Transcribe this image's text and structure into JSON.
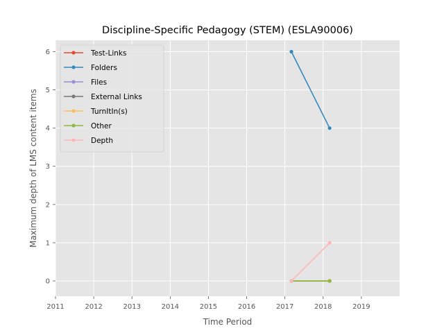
{
  "chart_data": {
    "type": "line",
    "title": "Discipline-Specific Pedagogy (STEM) (ESLA90006)",
    "xlabel": "Time Period",
    "ylabel": "Maximum depth of LMS content items",
    "xlim": [
      2011,
      2020
    ],
    "ylim": [
      -0.4,
      6.3
    ],
    "xticks": [
      2011,
      2012,
      2013,
      2014,
      2015,
      2016,
      2017,
      2018,
      2019
    ],
    "yticks": [
      0,
      1,
      2,
      3,
      4,
      5,
      6
    ],
    "grid": true,
    "legend_position": "top-left",
    "series": [
      {
        "name": "Test-Links",
        "color": "#E24A33",
        "x": [
          2017.17,
          2018.17
        ],
        "y": [
          0,
          0
        ]
      },
      {
        "name": "Folders",
        "color": "#348ABD",
        "x": [
          2017.17,
          2018.17
        ],
        "y": [
          6,
          4
        ]
      },
      {
        "name": "Files",
        "color": "#988ED5",
        "x": [
          2017.17,
          2018.17
        ],
        "y": [
          0,
          0
        ]
      },
      {
        "name": "External Links",
        "color": "#777777",
        "x": [
          2017.17,
          2018.17
        ],
        "y": [
          0,
          0
        ]
      },
      {
        "name": "TurnItIn(s)",
        "color": "#FBC15E",
        "x": [
          2017.17,
          2018.17
        ],
        "y": [
          0,
          0
        ]
      },
      {
        "name": "Other",
        "color": "#8EBA42",
        "x": [
          2017.17,
          2018.17
        ],
        "y": [
          0,
          0
        ]
      },
      {
        "name": "Depth",
        "color": "#FFB5B8",
        "x": [
          2017.17,
          2018.17
        ],
        "y": [
          0,
          1
        ]
      }
    ]
  }
}
